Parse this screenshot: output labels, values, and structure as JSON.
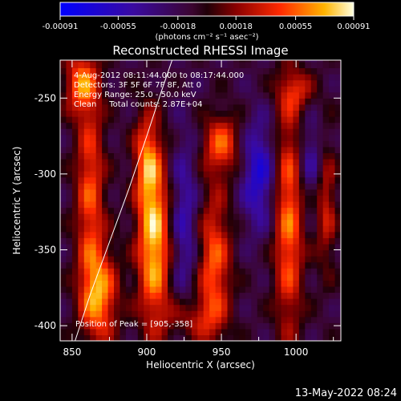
{
  "colorbar": {
    "ticks": [
      "-0.00091",
      "-0.00055",
      "-0.00018",
      "0.00018",
      "0.00055",
      "0.00091"
    ],
    "unit_label": "(photons cm⁻² s⁻¹ asec⁻²)",
    "range": [
      -0.00091,
      0.00091
    ]
  },
  "chart_data": {
    "type": "heatmap",
    "title": "Reconstructed RHESSI Image",
    "xlabel": "Heliocentric X (arcsec)",
    "ylabel": "Heliocentric Y (arcsec)",
    "xlim": [
      842,
      1030
    ],
    "ylim": [
      -410,
      -225
    ],
    "x_ticks": [
      850,
      900,
      950,
      1000
    ],
    "y_ticks": [
      -250,
      -300,
      -350,
      -400
    ],
    "annotations": {
      "time_range": "4-Aug-2012 08:11:44.000 to 08:17:44.000",
      "detectors": "Detectors: 3F 5F 6F 7F 8F, Att 0",
      "energy_range": "Energy Range: 25.0 - 50.0 keV",
      "clean_counts": "Clean     Total counts: 2.87E+04",
      "peak": "Position of Peak = [905,-358]"
    },
    "limb_curve": [
      [
        852,
        -410
      ],
      [
        862,
        -380
      ],
      [
        875,
        -345
      ],
      [
        888,
        -310
      ],
      [
        900,
        -275
      ],
      [
        910,
        -245
      ],
      [
        917,
        -225
      ]
    ],
    "hotspots": [
      {
        "x": 905,
        "y": -345,
        "amp": 0.00091,
        "sx": 8,
        "sy": 40
      },
      {
        "x": 900,
        "y": -290,
        "amp": 0.00055,
        "sx": 6,
        "sy": 22
      },
      {
        "x": 868,
        "y": -380,
        "amp": 0.00075,
        "sx": 9,
        "sy": 22
      },
      {
        "x": 862,
        "y": -310,
        "amp": 0.0006,
        "sx": 7,
        "sy": 45
      },
      {
        "x": 856,
        "y": -240,
        "amp": 0.00065,
        "sx": 8,
        "sy": 14
      },
      {
        "x": 950,
        "y": -280,
        "amp": 0.0006,
        "sx": 9,
        "sy": 14
      },
      {
        "x": 945,
        "y": -360,
        "amp": 0.00065,
        "sx": 8,
        "sy": 35
      },
      {
        "x": 995,
        "y": -330,
        "amp": 0.0007,
        "sx": 7,
        "sy": 55
      },
      {
        "x": 1020,
        "y": -320,
        "amp": 0.00045,
        "sx": 5,
        "sy": 30
      },
      {
        "x": 1000,
        "y": -245,
        "amp": 0.0004,
        "sx": 9,
        "sy": 10
      },
      {
        "x": 930,
        "y": -395,
        "amp": 0.00035,
        "sx": 12,
        "sy": 10
      }
    ],
    "coldspots": [
      {
        "x": 975,
        "y": -300,
        "amp": -0.00055,
        "sx": 8,
        "sy": 25
      },
      {
        "x": 925,
        "y": -330,
        "amp": -0.0004,
        "sx": 7,
        "sy": 40
      },
      {
        "x": 1010,
        "y": -290,
        "amp": -0.00035,
        "sx": 6,
        "sy": 20
      }
    ]
  },
  "footer_date": "13-May-2022 08:24"
}
